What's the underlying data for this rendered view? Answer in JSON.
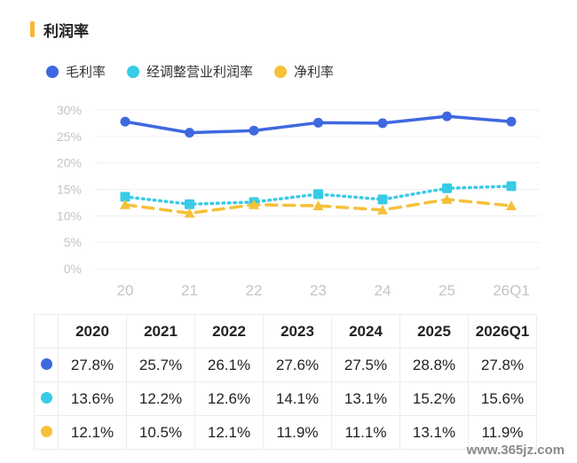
{
  "title": "利润率",
  "colors": {
    "gross": "#3f68e0",
    "adjusted": "#38cbe6",
    "net": "#f5c13a",
    "accent": "#f5b731"
  },
  "chart_data": {
    "type": "line",
    "categories": [
      "20",
      "21",
      "22",
      "23",
      "24",
      "25",
      "26Q1"
    ],
    "y_ticks": [
      "30%",
      "25%",
      "20%",
      "15%",
      "10%",
      "5%",
      "0%"
    ],
    "ylim": [
      0,
      30
    ],
    "grid": true,
    "legend_position": "top-left",
    "series": [
      {
        "name": "毛利率",
        "values": [
          27.8,
          25.7,
          26.1,
          27.6,
          27.5,
          28.8,
          27.8
        ],
        "marker": "circle",
        "style": "solid"
      },
      {
        "name": "经调整营业利润率",
        "values": [
          13.6,
          12.2,
          12.6,
          14.1,
          13.1,
          15.2,
          15.6
        ],
        "marker": "square",
        "style": "dotted"
      },
      {
        "name": "净利率",
        "values": [
          12.1,
          10.5,
          12.1,
          11.9,
          11.1,
          13.1,
          11.9
        ],
        "marker": "triangle",
        "style": "dashed"
      }
    ]
  },
  "table": {
    "headers": [
      "2020",
      "2021",
      "2022",
      "2023",
      "2024",
      "2025",
      "2026Q1"
    ],
    "rows": [
      [
        "27.8%",
        "25.7%",
        "26.1%",
        "27.6%",
        "27.5%",
        "28.8%",
        "27.8%"
      ],
      [
        "13.6%",
        "12.2%",
        "12.6%",
        "14.1%",
        "13.1%",
        "15.2%",
        "15.6%"
      ],
      [
        "12.1%",
        "10.5%",
        "12.1%",
        "11.9%",
        "11.1%",
        "13.1%",
        "11.9%"
      ]
    ]
  },
  "watermark": "www.365jz.com"
}
